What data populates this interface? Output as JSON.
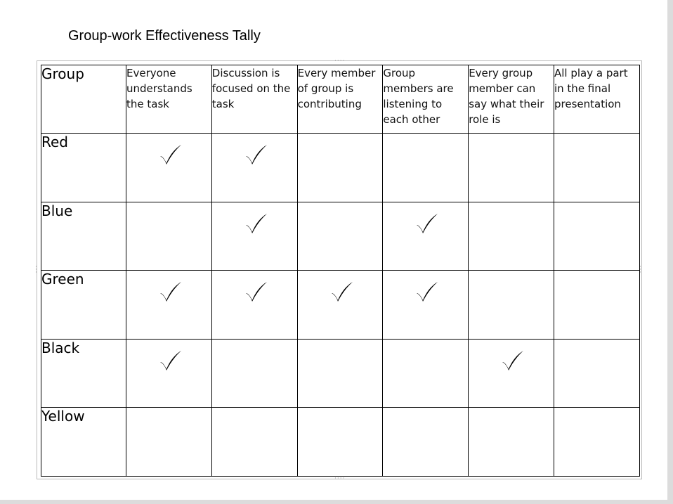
{
  "title": "Group-work Effectiveness Tally",
  "table": {
    "group_header": "Group",
    "criteria": [
      "Everyone understands the task",
      "Discussion is focused on the task",
      "Every member of group is contributing",
      "Group members are listening to each other",
      "Every group member can say what their role is",
      "All play a part in the final presentation"
    ],
    "rows": [
      {
        "group": "Red",
        "marks": [
          true,
          true,
          false,
          false,
          false,
          false
        ]
      },
      {
        "group": "Blue",
        "marks": [
          false,
          true,
          false,
          true,
          false,
          false
        ]
      },
      {
        "group": "Green",
        "marks": [
          true,
          true,
          true,
          true,
          false,
          false
        ]
      },
      {
        "group": "Black",
        "marks": [
          true,
          false,
          false,
          false,
          true,
          false
        ]
      },
      {
        "group": "Yellow",
        "marks": [
          false,
          false,
          false,
          false,
          false,
          false
        ]
      }
    ],
    "mark_icon": "checkmark-icon"
  }
}
